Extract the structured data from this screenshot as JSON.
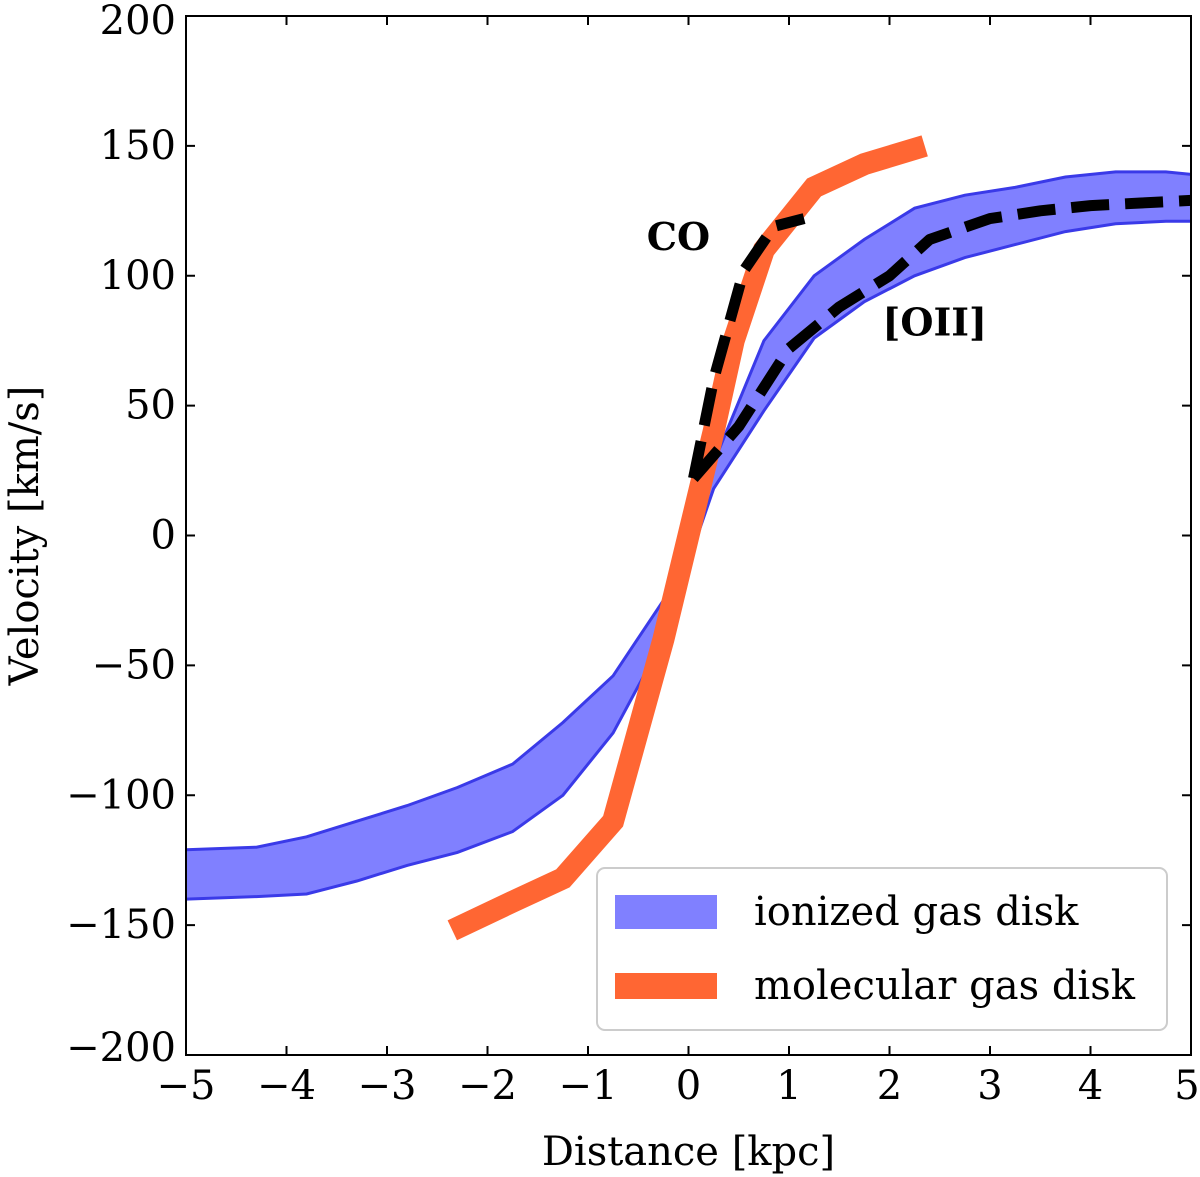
{
  "chart_data": {
    "type": "line",
    "title": "",
    "xlabel": "Distance [kpc]",
    "ylabel": "Velocity [km/s]",
    "xlim": [
      -5,
      5
    ],
    "ylim": [
      -200,
      200
    ],
    "xticks": [
      -5,
      -4,
      -3,
      -2,
      -1,
      0,
      1,
      2,
      3,
      4,
      5
    ],
    "xtick_labels": [
      "−5",
      "−4",
      "−3",
      "−2",
      "−1",
      "0",
      "1",
      "2",
      "3",
      "4",
      "5"
    ],
    "yticks": [
      -200,
      -150,
      -100,
      -50,
      0,
      50,
      100,
      150,
      200
    ],
    "ytick_labels": [
      "−200",
      "−150",
      "−100",
      "−50",
      "0",
      "50",
      "100",
      "150",
      "200"
    ],
    "series": [
      {
        "name": "ionized gas disk",
        "kind": "band",
        "color": "#8080ff",
        "edge_color": "#3a3ae8",
        "x": [
          -5,
          -4.3,
          -3.8,
          -3.3,
          -2.8,
          -2.3,
          -1.75,
          -1.25,
          -0.75,
          -0.25,
          0,
          0.25,
          0.75,
          1.25,
          1.75,
          2.25,
          2.75,
          3.25,
          3.75,
          4.25,
          4.75,
          5
        ],
        "upper": [
          -121,
          -120,
          -116,
          -110,
          -104,
          -97,
          -88,
          -72,
          -54,
          -25,
          3,
          28,
          75,
          100,
          114,
          126,
          131,
          134,
          138,
          140,
          140,
          139
        ],
        "lower": [
          -140,
          -139,
          -138,
          -133,
          -127,
          -122,
          -114,
          -100,
          -76,
          -40,
          -10,
          18,
          48,
          76,
          90,
          100,
          107,
          112,
          117,
          120,
          121,
          121
        ]
      },
      {
        "name": "molecular gas disk",
        "kind": "line",
        "color": "#ff6633",
        "x": [
          -2.35,
          -1.75,
          -1.25,
          -0.75,
          -0.25,
          0,
          0.25,
          0.45,
          0.75,
          1.25,
          1.75,
          2.35
        ],
        "y": [
          -152,
          -141,
          -132,
          -110,
          -40,
          0,
          40,
          75,
          110,
          134,
          143,
          150
        ]
      },
      {
        "name": "CO model",
        "kind": "dashed",
        "color": "#000000",
        "x": [
          0.05,
          0.25,
          0.55,
          0.85,
          1.15
        ],
        "y": [
          22,
          60,
          102,
          119,
          122
        ]
      },
      {
        "name": "[OII] model",
        "kind": "dashed",
        "color": "#000000",
        "x": [
          0.05,
          0.5,
          1.0,
          1.5,
          2.0,
          2.4,
          3.0,
          3.5,
          4.0,
          4.5,
          5.0
        ],
        "y": [
          22,
          42,
          72,
          88,
          100,
          114,
          122,
          125,
          127,
          128,
          129
        ]
      }
    ],
    "annotations": [
      {
        "text": "CO",
        "x": -0.1,
        "y": 110
      },
      {
        "text": "[OII]",
        "x": 2.45,
        "y": 77
      }
    ],
    "legend": {
      "position": "lower-right",
      "entries": [
        "ionized gas disk",
        "molecular gas disk"
      ]
    }
  }
}
